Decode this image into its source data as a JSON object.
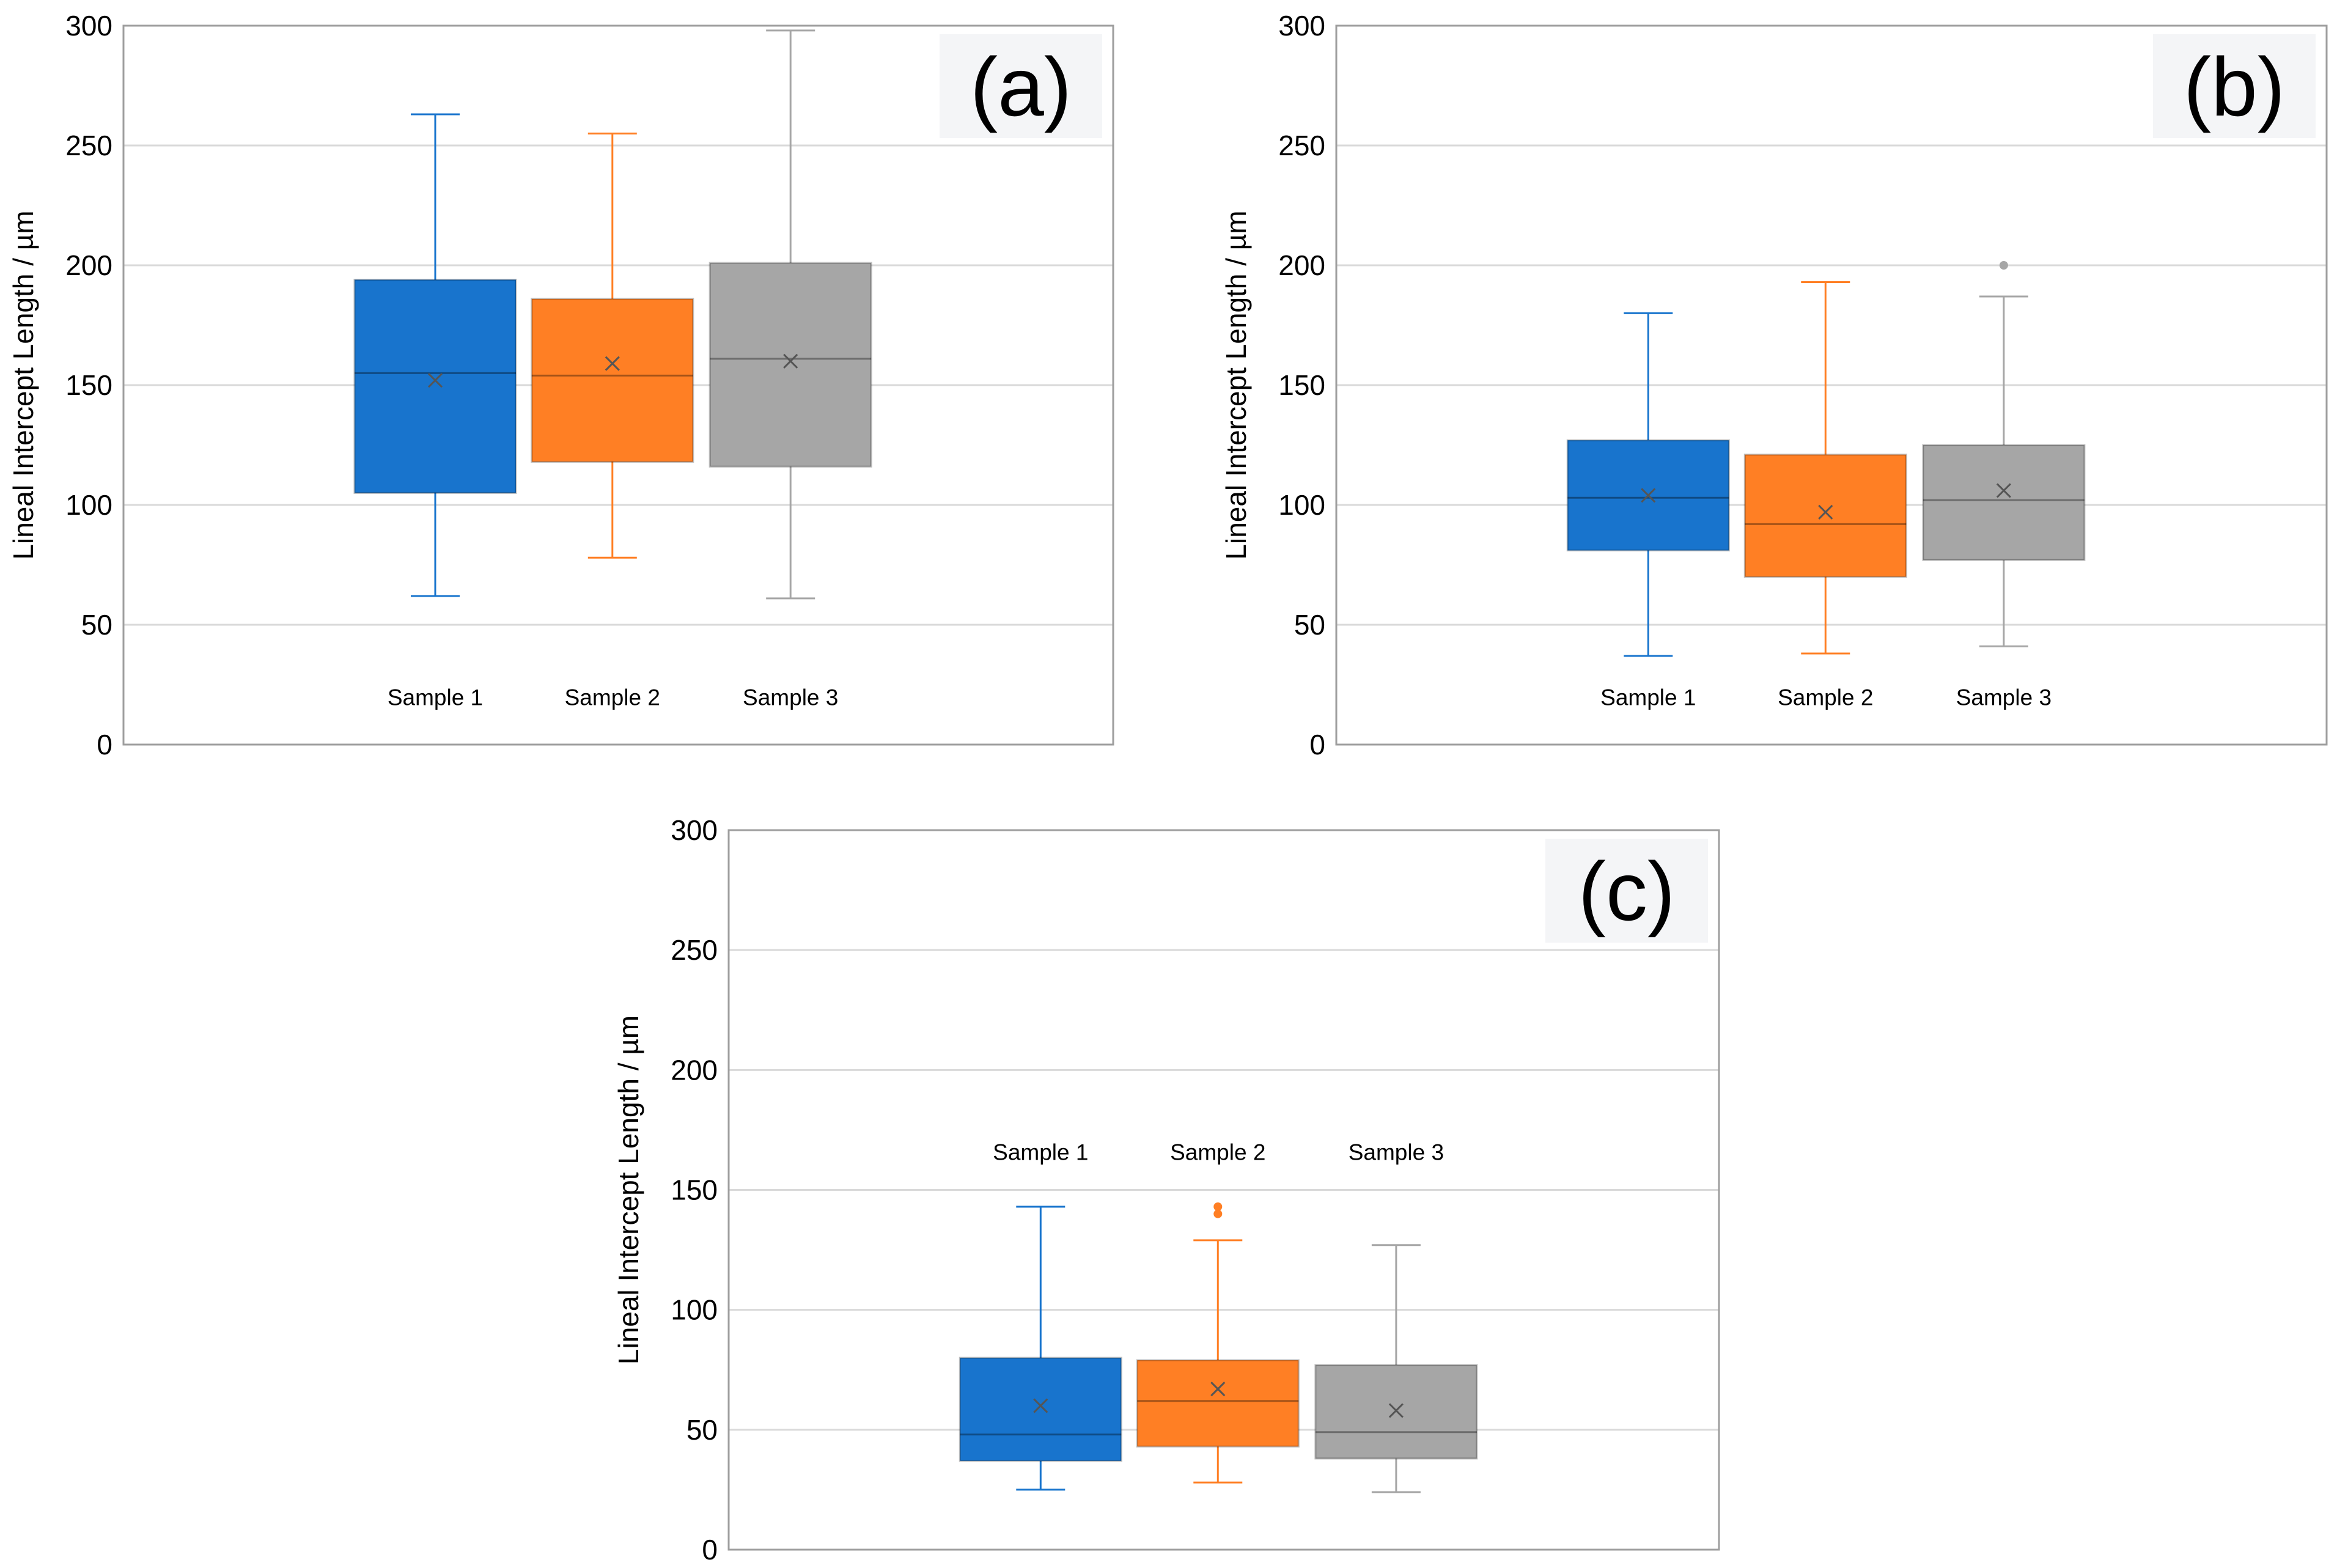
{
  "figure": {
    "colors": {
      "blue": "#1874CD",
      "orange": "#FF7F24",
      "gray": "#A6A6A6",
      "grid": "#D9D9D9",
      "frame": "#9E9E9E",
      "mean_marker": "#555555",
      "label_background": "#F4F5F7"
    }
  },
  "chart_data": [
    {
      "type": "box",
      "panel_label": "(a)",
      "title": "",
      "xlabel": "",
      "ylabel": "Lineal Intercept Length / µm",
      "ylim": [
        0,
        300
      ],
      "yticks": [
        "0",
        "50",
        "100",
        "150",
        "200",
        "250",
        "300"
      ],
      "grid": true,
      "category_label_y": 20,
      "series": [
        {
          "name": "Sample 1",
          "color": "#1874CD",
          "whisker_low": 62,
          "q1": 105,
          "median": 155,
          "q3": 194,
          "whisker_high": 263,
          "mean": 152,
          "outliers": []
        },
        {
          "name": "Sample 2",
          "color": "#FF7F24",
          "whisker_low": 78,
          "q1": 118,
          "median": 154,
          "q3": 186,
          "whisker_high": 255,
          "mean": 159,
          "outliers": []
        },
        {
          "name": "Sample 3",
          "color": "#A6A6A6",
          "whisker_low": 61,
          "q1": 116,
          "median": 161,
          "q3": 201,
          "whisker_high": 298,
          "mean": 160,
          "outliers": []
        }
      ]
    },
    {
      "type": "box",
      "panel_label": "(b)",
      "title": "",
      "xlabel": "",
      "ylabel": "Lineal Intercept Length / µm",
      "ylim": [
        0,
        300
      ],
      "yticks": [
        "0",
        "50",
        "100",
        "150",
        "200",
        "250",
        "300"
      ],
      "grid": true,
      "category_label_y": 20,
      "series": [
        {
          "name": "Sample 1",
          "color": "#1874CD",
          "whisker_low": 37,
          "q1": 81,
          "median": 103,
          "q3": 127,
          "whisker_high": 180,
          "mean": 104,
          "outliers": []
        },
        {
          "name": "Sample 2",
          "color": "#FF7F24",
          "whisker_low": 38,
          "q1": 70,
          "median": 92,
          "q3": 121,
          "whisker_high": 193,
          "mean": 97,
          "outliers": []
        },
        {
          "name": "Sample 3",
          "color": "#A6A6A6",
          "whisker_low": 41,
          "q1": 77,
          "median": 102,
          "q3": 125,
          "whisker_high": 187,
          "mean": 106,
          "outliers": [
            200
          ]
        }
      ]
    },
    {
      "type": "box",
      "panel_label": "(c)",
      "title": "",
      "xlabel": "",
      "ylabel": "Lineal Intercept Length / µm",
      "ylim": [
        0,
        300
      ],
      "yticks": [
        "0",
        "50",
        "100",
        "150",
        "200",
        "250",
        "300"
      ],
      "grid": true,
      "category_label_y": 166,
      "series": [
        {
          "name": "Sample 1",
          "color": "#1874CD",
          "whisker_low": 25,
          "q1": 37,
          "median": 48,
          "q3": 80,
          "whisker_high": 143,
          "mean": 60,
          "outliers": []
        },
        {
          "name": "Sample 2",
          "color": "#FF7F24",
          "whisker_low": 28,
          "q1": 43,
          "median": 62,
          "q3": 79,
          "whisker_high": 129,
          "mean": 67,
          "outliers": [
            140,
            143
          ]
        },
        {
          "name": "Sample 3",
          "color": "#A6A6A6",
          "whisker_low": 24,
          "q1": 38,
          "median": 49,
          "q3": 77,
          "whisker_high": 127,
          "mean": 58,
          "outliers": []
        }
      ]
    }
  ]
}
